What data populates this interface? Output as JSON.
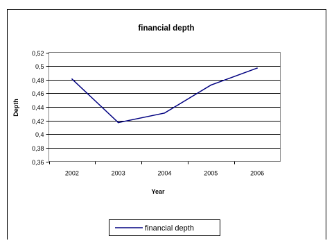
{
  "chart_data": {
    "type": "line",
    "title": "financial depth",
    "xlabel": "Year",
    "ylabel": "Depth",
    "categories": [
      "2002",
      "2003",
      "2004",
      "2005",
      "2006"
    ],
    "series": [
      {
        "name": "financial depth",
        "values": [
          0.481,
          0.417,
          0.431,
          0.472,
          0.497
        ],
        "color": "#000080"
      }
    ],
    "ylim": [
      0.36,
      0.52
    ],
    "yticks": [
      "0,36",
      "0,38",
      "0,4",
      "0,42",
      "0,44",
      "0,46",
      "0,48",
      "0,5",
      "0,52"
    ],
    "grid": true,
    "legend_position": "bottom"
  }
}
